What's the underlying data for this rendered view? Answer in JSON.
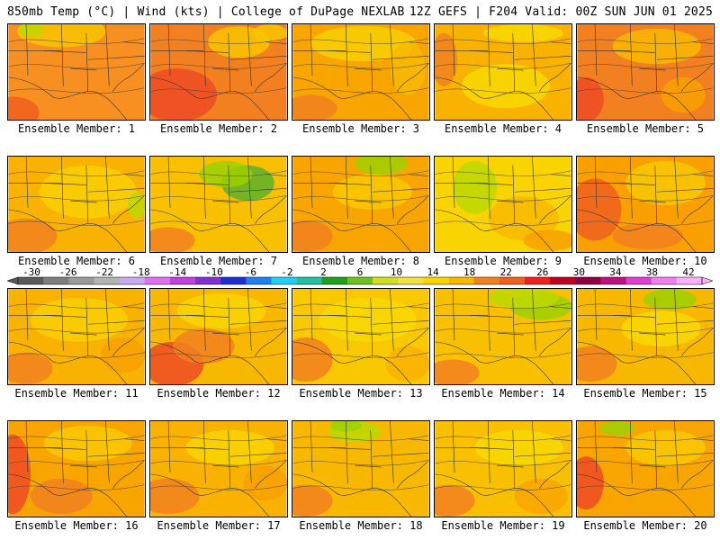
{
  "header": {
    "left": "850mb Temp (°C) | Wind (kts) | College of DuPage NEXLAB",
    "right": "12Z GEFS | F204 Valid: 00Z SUN JUN 01 2025"
  },
  "panels": [
    {
      "label": "Ensemble Member: 1",
      "base": "#f79020",
      "blobs": [
        [
          "#f9c400",
          60,
          8,
          50,
          18
        ],
        [
          "#bcd800",
          25,
          6,
          14,
          8
        ],
        [
          "#f06020",
          5,
          100,
          30,
          18
        ]
      ]
    },
    {
      "label": "Ensemble Member: 2",
      "base": "#f28020",
      "blobs": [
        [
          "#ee4a25",
          30,
          80,
          45,
          30
        ],
        [
          "#f9c400",
          100,
          20,
          35,
          18
        ],
        [
          "#f9c400",
          135,
          10,
          20,
          10
        ]
      ]
    },
    {
      "label": "Ensemble Member: 3",
      "base": "#f9a500",
      "blobs": [
        [
          "#f9cf00",
          80,
          22,
          60,
          20
        ],
        [
          "#f28020",
          20,
          95,
          30,
          15
        ],
        [
          "#f9b800",
          130,
          50,
          20,
          30
        ]
      ]
    },
    {
      "label": "Ensemble Member: 4",
      "base": "#f9b200",
      "blobs": [
        [
          "#f9d800",
          80,
          70,
          50,
          25
        ],
        [
          "#f9d800",
          100,
          10,
          45,
          10
        ],
        [
          "#f28020",
          10,
          40,
          15,
          30
        ]
      ]
    },
    {
      "label": "Ensemble Member: 5",
      "base": "#f28020",
      "blobs": [
        [
          "#ee4a25",
          10,
          85,
          20,
          25
        ],
        [
          "#f9b800",
          90,
          25,
          50,
          20
        ],
        [
          "#f9a000",
          120,
          80,
          25,
          20
        ]
      ]
    },
    {
      "label": "Ensemble Member: 6",
      "base": "#f9b200",
      "blobs": [
        [
          "#f9cf00",
          90,
          40,
          55,
          30
        ],
        [
          "#f28020",
          20,
          90,
          35,
          20
        ],
        [
          "#bcd800",
          145,
          55,
          10,
          15
        ]
      ]
    },
    {
      "label": "Ensemble Member: 7",
      "base": "#f9c000",
      "blobs": [
        [
          "#5cb22b",
          110,
          30,
          30,
          20
        ],
        [
          "#9ed000",
          85,
          20,
          30,
          15
        ],
        [
          "#f28020",
          20,
          95,
          30,
          15
        ]
      ]
    },
    {
      "label": "Ensemble Member: 8",
      "base": "#f9a500",
      "blobs": [
        [
          "#9ed000",
          100,
          8,
          30,
          12
        ],
        [
          "#f9c800",
          90,
          40,
          45,
          20
        ],
        [
          "#f28020",
          15,
          90,
          30,
          18
        ]
      ]
    },
    {
      "label": "Ensemble Member: 9",
      "base": "#f9d400",
      "blobs": [
        [
          "#bcd800",
          45,
          35,
          25,
          30
        ],
        [
          "#f9b800",
          100,
          70,
          40,
          25
        ],
        [
          "#f9a000",
          130,
          95,
          30,
          12
        ]
      ]
    },
    {
      "label": "Ensemble Member: 10",
      "base": "#f9a000",
      "blobs": [
        [
          "#f06020",
          20,
          60,
          30,
          35
        ],
        [
          "#f9c800",
          100,
          30,
          45,
          25
        ],
        [
          "#f28020",
          80,
          90,
          40,
          15
        ]
      ]
    },
    {
      "label": "Ensemble Member: 11",
      "base": "#f9b200",
      "blobs": [
        [
          "#f9cf00",
          80,
          35,
          55,
          25
        ],
        [
          "#f28020",
          20,
          90,
          30,
          18
        ],
        [
          "#f9a000",
          130,
          75,
          25,
          20
        ]
      ]
    },
    {
      "label": "Ensemble Member: 12",
      "base": "#f9b800",
      "blobs": [
        [
          "#ee4a25",
          25,
          85,
          35,
          25
        ],
        [
          "#f28020",
          60,
          65,
          35,
          20
        ],
        [
          "#f9d400",
          80,
          25,
          50,
          20
        ]
      ]
    },
    {
      "label": "Ensemble Member: 13",
      "base": "#f9c800",
      "blobs": [
        [
          "#f9d800",
          85,
          35,
          55,
          25
        ],
        [
          "#f28020",
          15,
          80,
          30,
          25
        ],
        [
          "#f9b200",
          130,
          85,
          25,
          20
        ]
      ]
    },
    {
      "label": "Ensemble Member: 14",
      "base": "#f9c000",
      "blobs": [
        [
          "#9ed000",
          120,
          20,
          35,
          15
        ],
        [
          "#bcd800",
          100,
          10,
          40,
          12
        ],
        [
          "#f28020",
          20,
          95,
          30,
          15
        ]
      ]
    },
    {
      "label": "Ensemble Member: 15",
      "base": "#f9b800",
      "blobs": [
        [
          "#9ed000",
          105,
          12,
          30,
          12
        ],
        [
          "#f9d800",
          95,
          45,
          45,
          20
        ],
        [
          "#f28020",
          15,
          85,
          30,
          20
        ]
      ]
    },
    {
      "label": "Ensemble Member: 16",
      "base": "#f9a500",
      "blobs": [
        [
          "#ee4a25",
          5,
          60,
          20,
          45
        ],
        [
          "#f9c800",
          90,
          25,
          50,
          20
        ],
        [
          "#f28020",
          60,
          85,
          35,
          20
        ]
      ]
    },
    {
      "label": "Ensemble Member: 17",
      "base": "#f9b200",
      "blobs": [
        [
          "#f9d400",
          90,
          30,
          50,
          20
        ],
        [
          "#f28020",
          20,
          85,
          35,
          20
        ],
        [
          "#f9a000",
          130,
          70,
          25,
          20
        ]
      ]
    },
    {
      "label": "Ensemble Member: 18",
      "base": "#f9b800",
      "blobs": [
        [
          "#bcd800",
          70,
          12,
          30,
          12
        ],
        [
          "#9ed000",
          60,
          5,
          18,
          7
        ],
        [
          "#f28020",
          15,
          90,
          30,
          18
        ]
      ]
    },
    {
      "label": "Ensemble Member: 19",
      "base": "#f9c000",
      "blobs": [
        [
          "#f9d800",
          95,
          30,
          50,
          20
        ],
        [
          "#f28020",
          15,
          90,
          30,
          18
        ],
        [
          "#f9a500",
          120,
          85,
          30,
          20
        ]
      ]
    },
    {
      "label": "Ensemble Member: 20",
      "base": "#f9a500",
      "blobs": [
        [
          "#9ed000",
          45,
          8,
          20,
          8
        ],
        [
          "#ee4a25",
          10,
          70,
          20,
          30
        ],
        [
          "#f9c800",
          100,
          30,
          45,
          20
        ]
      ]
    }
  ],
  "colorbar": {
    "ticks": [
      "-30",
      "-26",
      "-22",
      "-18",
      "-14",
      "-10",
      "-6",
      "-2",
      "2",
      "6",
      "10",
      "14",
      "18",
      "22",
      "26",
      "30",
      "34",
      "38",
      "42"
    ],
    "colors": [
      "#5a5a5a",
      "#7d7d7d",
      "#9a9a9a",
      "#b4b4b4",
      "#c8a8f0",
      "#e070f0",
      "#c040e0",
      "#8030d0",
      "#2030d0",
      "#2080f0",
      "#20d0f0",
      "#20c0a0",
      "#20a020",
      "#70c020",
      "#d0e020",
      "#f0e040",
      "#f9d400",
      "#f9b800",
      "#f28020",
      "#f06020",
      "#ee2020",
      "#c00020",
      "#900040",
      "#c01080",
      "#e040d0",
      "#f080f0",
      "#f8b0f8"
    ]
  }
}
